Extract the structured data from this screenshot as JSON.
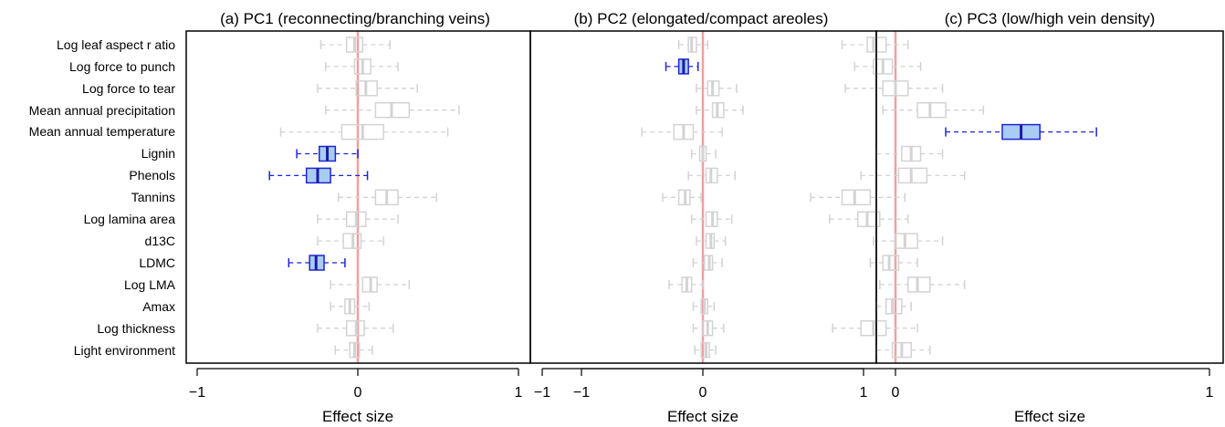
{
  "chart_data": {
    "type": "boxplot",
    "row_labels": [
      "Log leaf aspect r atio",
      "Log force to punch",
      "Log force to tear",
      "Mean annual precipitation",
      "Mean annual temperature",
      "Lignin",
      "Phenols",
      "Tannins",
      "Log lamina area",
      "d13C",
      "LDMC",
      "Log LMA",
      "Amax",
      "Log thickness",
      "Light environment"
    ],
    "xlabel": "Effect size",
    "xlim": [
      -1,
      1
    ],
    "xticks": [
      -1,
      0,
      1
    ],
    "xtick_labels": [
      "−1",
      "0",
      "1"
    ],
    "reference_line": 0,
    "colors": {
      "highlight_stroke": "#1f24d6",
      "highlight_fill": "#a9cdf2",
      "highlight_median": "#1a1aa8",
      "muted": "#d3d3d3",
      "reference": "#f0a0a0"
    },
    "panels": [
      {
        "title": "(a) PC1 (reconnecting/branching veins)",
        "boxes": [
          {
            "wlo": -0.23,
            "q1": -0.07,
            "med": -0.02,
            "q3": 0.03,
            "whi": 0.2,
            "highlight": false
          },
          {
            "wlo": -0.2,
            "q1": -0.02,
            "med": 0.03,
            "q3": 0.08,
            "whi": 0.25,
            "highlight": false
          },
          {
            "wlo": -0.25,
            "q1": -0.01,
            "med": 0.05,
            "q3": 0.12,
            "whi": 0.37,
            "highlight": false
          },
          {
            "wlo": -0.2,
            "q1": 0.11,
            "med": 0.21,
            "q3": 0.32,
            "whi": 0.63,
            "highlight": false
          },
          {
            "wlo": -0.48,
            "q1": -0.1,
            "med": 0.03,
            "q3": 0.16,
            "whi": 0.56,
            "highlight": false
          },
          {
            "wlo": -0.38,
            "q1": -0.24,
            "med": -0.19,
            "q3": -0.14,
            "whi": 0.0,
            "highlight": true
          },
          {
            "wlo": -0.55,
            "q1": -0.32,
            "med": -0.25,
            "q3": -0.17,
            "whi": 0.06,
            "highlight": true
          },
          {
            "wlo": -0.12,
            "q1": 0.11,
            "med": 0.18,
            "q3": 0.25,
            "whi": 0.49,
            "highlight": false
          },
          {
            "wlo": -0.25,
            "q1": -0.07,
            "med": -0.01,
            "q3": 0.05,
            "whi": 0.25,
            "highlight": false
          },
          {
            "wlo": -0.25,
            "q1": -0.09,
            "med": -0.03,
            "q3": 0.02,
            "whi": 0.16,
            "highlight": false
          },
          {
            "wlo": -0.43,
            "q1": -0.3,
            "med": -0.26,
            "q3": -0.21,
            "whi": -0.08,
            "highlight": true
          },
          {
            "wlo": -0.17,
            "q1": 0.03,
            "med": 0.08,
            "q3": 0.12,
            "whi": 0.32,
            "highlight": false
          },
          {
            "wlo": -0.17,
            "q1": -0.08,
            "med": -0.05,
            "q3": -0.02,
            "whi": 0.07,
            "highlight": false
          },
          {
            "wlo": -0.25,
            "q1": -0.07,
            "med": -0.01,
            "q3": 0.04,
            "whi": 0.22,
            "highlight": false
          },
          {
            "wlo": -0.14,
            "q1": -0.05,
            "med": -0.02,
            "q3": 0.01,
            "whi": 0.09,
            "highlight": false
          }
        ]
      },
      {
        "title": "(b) PC2 (elongated/compact areoles)",
        "boxes": [
          {
            "wlo": -0.15,
            "q1": -0.09,
            "med": -0.07,
            "q3": -0.04,
            "whi": 0.03,
            "highlight": false
          },
          {
            "wlo": -0.23,
            "q1": -0.15,
            "med": -0.12,
            "q3": -0.09,
            "whi": -0.03,
            "highlight": true
          },
          {
            "wlo": -0.04,
            "q1": 0.03,
            "med": 0.06,
            "q3": 0.1,
            "whi": 0.21,
            "highlight": false
          },
          {
            "wlo": -0.04,
            "q1": 0.06,
            "med": 0.09,
            "q3": 0.13,
            "whi": 0.25,
            "highlight": false
          },
          {
            "wlo": -0.38,
            "q1": -0.18,
            "med": -0.12,
            "q3": -0.06,
            "whi": 0.12,
            "highlight": false
          },
          {
            "wlo": -0.07,
            "q1": -0.02,
            "med": 0.0,
            "q3": 0.02,
            "whi": 0.08,
            "highlight": false
          },
          {
            "wlo": -0.09,
            "q1": 0.02,
            "med": 0.05,
            "q3": 0.09,
            "whi": 0.2,
            "highlight": false
          },
          {
            "wlo": -0.25,
            "q1": -0.15,
            "med": -0.11,
            "q3": -0.08,
            "whi": -0.01,
            "highlight": false
          },
          {
            "wlo": -0.07,
            "q1": 0.02,
            "med": 0.06,
            "q3": 0.09,
            "whi": 0.18,
            "highlight": false
          },
          {
            "wlo": -0.04,
            "q1": 0.02,
            "med": 0.05,
            "q3": 0.07,
            "whi": 0.14,
            "highlight": false
          },
          {
            "wlo": -0.06,
            "q1": 0.01,
            "med": 0.04,
            "q3": 0.06,
            "whi": 0.12,
            "highlight": false
          },
          {
            "wlo": -0.21,
            "q1": -0.13,
            "med": -0.1,
            "q3": -0.07,
            "whi": 0.0,
            "highlight": false
          },
          {
            "wlo": -0.06,
            "q1": -0.01,
            "med": 0.01,
            "q3": 0.03,
            "whi": 0.07,
            "highlight": false
          },
          {
            "wlo": -0.06,
            "q1": 0.0,
            "med": 0.03,
            "q3": 0.06,
            "whi": 0.13,
            "highlight": false
          },
          {
            "wlo": -0.05,
            "q1": -0.01,
            "med": 0.02,
            "q3": 0.04,
            "whi": 0.08,
            "highlight": false
          }
        ]
      },
      {
        "title": "(c) PC3 (low/high vein density)",
        "boxes": [
          {
            "wlo": -0.17,
            "q1": -0.09,
            "med": -0.07,
            "q3": -0.03,
            "whi": 0.04,
            "highlight": false
          },
          {
            "wlo": -0.13,
            "q1": -0.07,
            "med": -0.04,
            "q3": -0.01,
            "whi": 0.08,
            "highlight": false
          },
          {
            "wlo": -0.16,
            "q1": -0.04,
            "med": 0.0,
            "q3": 0.04,
            "whi": 0.15,
            "highlight": false
          },
          {
            "wlo": -0.04,
            "q1": 0.07,
            "med": 0.11,
            "q3": 0.16,
            "whi": 0.28,
            "highlight": false
          },
          {
            "wlo": 0.16,
            "q1": 0.34,
            "med": 0.4,
            "q3": 0.46,
            "whi": 0.64,
            "highlight": true
          },
          {
            "wlo": -0.06,
            "q1": 0.02,
            "med": 0.05,
            "q3": 0.08,
            "whi": 0.15,
            "highlight": false
          },
          {
            "wlo": -0.11,
            "q1": 0.01,
            "med": 0.05,
            "q3": 0.1,
            "whi": 0.22,
            "highlight": false
          },
          {
            "wlo": -0.27,
            "q1": -0.17,
            "med": -0.13,
            "q3": -0.08,
            "whi": 0.03,
            "highlight": false
          },
          {
            "wlo": -0.21,
            "q1": -0.12,
            "med": -0.09,
            "q3": -0.05,
            "whi": 0.04,
            "highlight": false
          },
          {
            "wlo": -0.07,
            "q1": 0.0,
            "med": 0.03,
            "q3": 0.07,
            "whi": 0.15,
            "highlight": false
          },
          {
            "wlo": -0.08,
            "q1": -0.04,
            "med": -0.02,
            "q3": 0.01,
            "whi": 0.07,
            "highlight": false
          },
          {
            "wlo": -0.05,
            "q1": 0.04,
            "med": 0.07,
            "q3": 0.11,
            "whi": 0.22,
            "highlight": false
          },
          {
            "wlo": -0.06,
            "q1": -0.03,
            "med": -0.01,
            "q3": 0.02,
            "whi": 0.05,
            "highlight": false
          },
          {
            "wlo": -0.2,
            "q1": -0.11,
            "med": -0.07,
            "q3": -0.03,
            "whi": 0.07,
            "highlight": false
          },
          {
            "wlo": -0.06,
            "q1": -0.01,
            "med": 0.02,
            "q3": 0.05,
            "whi": 0.11,
            "highlight": false
          }
        ]
      }
    ]
  }
}
